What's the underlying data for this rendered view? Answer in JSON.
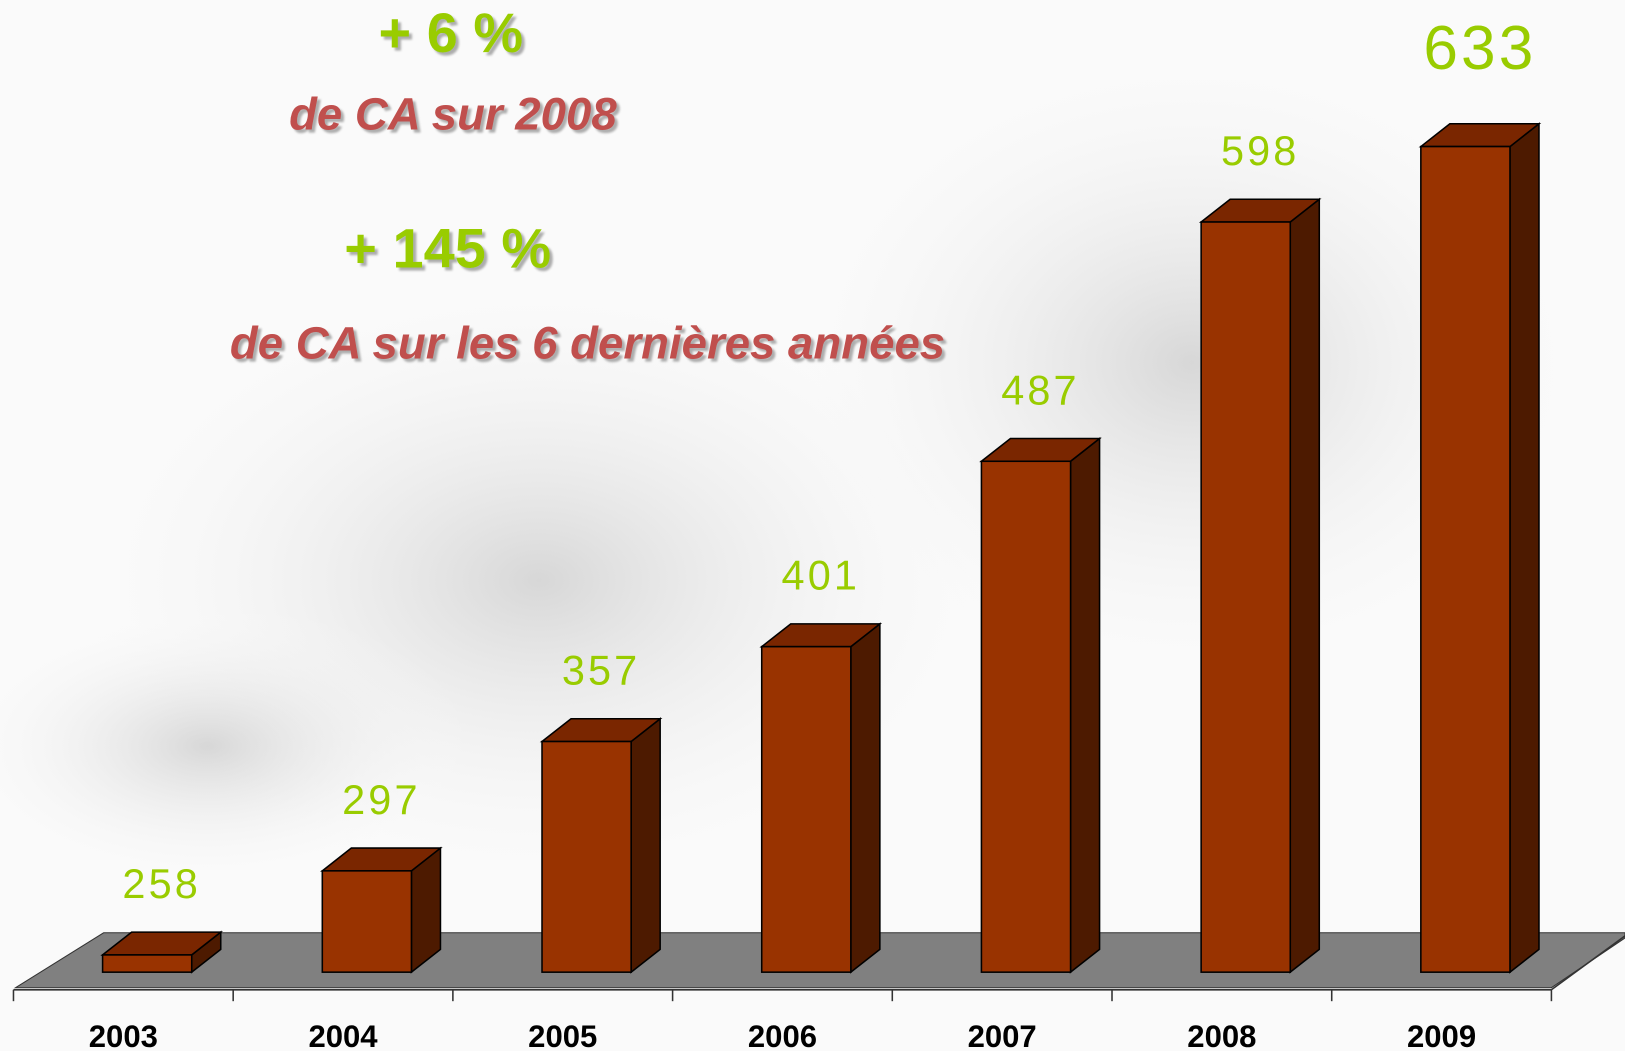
{
  "chart_data": {
    "type": "bar",
    "annotations": [
      "+ 6 %",
      "de CA sur 2008",
      "+ 145 %",
      "de CA sur les 6 dernières années"
    ],
    "categories": [
      "2003",
      "2004",
      "2005",
      "2006",
      "2007",
      "2008",
      "2009"
    ],
    "values": [
      258,
      297,
      357,
      401,
      487,
      598,
      633
    ],
    "color": "#993300",
    "ylim": [
      250,
      650
    ]
  }
}
